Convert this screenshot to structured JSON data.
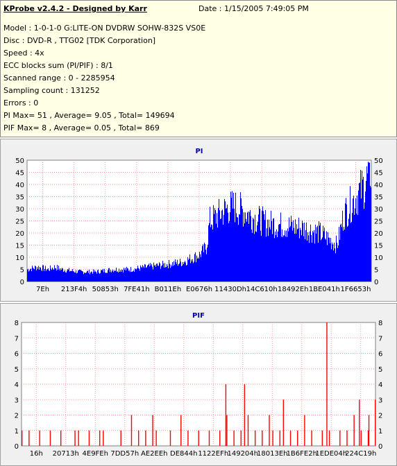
{
  "header": {
    "title": "KProbe v2.4.2 - Designed by Karr",
    "date": "Date : 1/15/2005 7:49:05 PM",
    "lines": [
      "Model : 1-0-1-0 G:LITE-ON DVDRW SOHW-832S  VS0E",
      "Disc : DVD-R , TTG02 [TDK Corporation]",
      "Speed : 4x",
      "ECC blocks sum (PI/PIF) : 8/1",
      "Scanned range : 0 - 2285954",
      "Sampling count : 131252",
      "Errors : 0",
      "PI Max= 51 , Average= 9.05 , Total= 149694",
      "PIF Max= 8 , Average= 0.05 , Total= 869"
    ]
  },
  "colors": {
    "pi": "#0000ff",
    "pif": "#ff0000",
    "grid": "#ff9999",
    "plot_bg": "#ffffff"
  },
  "chart_data": [
    {
      "type": "area",
      "title": "PI",
      "xlabel": "",
      "ylabel": "",
      "ylim": [
        0,
        50
      ],
      "yticks": [
        0,
        5,
        10,
        15,
        20,
        25,
        30,
        35,
        40,
        45,
        50
      ],
      "grid": true,
      "x_tick_labels": [
        "7Eh",
        "213F4h",
        "50853h",
        "7FE41h",
        "B011Eh",
        "E0676h",
        "11430Dh",
        "14C610h",
        "18492Eh",
        "1BE041h",
        "1F6653h"
      ],
      "x": [
        0,
        0.03,
        0.06,
        0.08,
        0.1,
        0.15,
        0.2,
        0.25,
        0.3,
        0.35,
        0.4,
        0.45,
        0.5,
        0.52,
        0.53,
        0.55,
        0.58,
        0.6,
        0.63,
        0.66,
        0.7,
        0.75,
        0.8,
        0.85,
        0.88,
        0.9,
        0.92,
        0.95,
        0.98,
        1.0
      ],
      "values": [
        5,
        6,
        5,
        6,
        5,
        4,
        4,
        5,
        5,
        6,
        7,
        8,
        11,
        14,
        25,
        27,
        30,
        31,
        29,
        26,
        24,
        23,
        22,
        20,
        17,
        15,
        28,
        34,
        40,
        47
      ],
      "peak_max": 51
    },
    {
      "type": "bar",
      "title": "PIF",
      "xlabel": "",
      "ylabel": "",
      "ylim": [
        0,
        8
      ],
      "yticks": [
        0,
        1,
        2,
        3,
        4,
        5,
        6,
        7,
        8
      ],
      "grid": true,
      "x_tick_labels": [
        "16h",
        "20713h",
        "4E9FEh",
        "7DD57h",
        "AE2EEh",
        "DE844h",
        "1122EFh",
        "149204h",
        "18013Eh",
        "1B6FE2h",
        "1EDE04h",
        "224C19h"
      ],
      "spikes": [
        {
          "x": 0.0,
          "v": 1
        },
        {
          "x": 0.02,
          "v": 1
        },
        {
          "x": 0.05,
          "v": 1
        },
        {
          "x": 0.08,
          "v": 1
        },
        {
          "x": 0.11,
          "v": 1
        },
        {
          "x": 0.15,
          "v": 1
        },
        {
          "x": 0.16,
          "v": 1
        },
        {
          "x": 0.19,
          "v": 1
        },
        {
          "x": 0.22,
          "v": 1
        },
        {
          "x": 0.23,
          "v": 1
        },
        {
          "x": 0.28,
          "v": 1
        },
        {
          "x": 0.31,
          "v": 2
        },
        {
          "x": 0.33,
          "v": 1
        },
        {
          "x": 0.35,
          "v": 1
        },
        {
          "x": 0.37,
          "v": 2
        },
        {
          "x": 0.38,
          "v": 1
        },
        {
          "x": 0.42,
          "v": 1
        },
        {
          "x": 0.45,
          "v": 2
        },
        {
          "x": 0.47,
          "v": 1
        },
        {
          "x": 0.5,
          "v": 1
        },
        {
          "x": 0.53,
          "v": 1
        },
        {
          "x": 0.56,
          "v": 1
        },
        {
          "x": 0.58,
          "v": 2
        },
        {
          "x": 0.6,
          "v": 1
        },
        {
          "x": 0.62,
          "v": 1
        },
        {
          "x": 0.64,
          "v": 2
        },
        {
          "x": 0.66,
          "v": 1
        },
        {
          "x": 0.68,
          "v": 1
        },
        {
          "x": 0.7,
          "v": 2
        },
        {
          "x": 0.71,
          "v": 1
        },
        {
          "x": 0.73,
          "v": 1
        },
        {
          "x": 0.76,
          "v": 1
        },
        {
          "x": 0.78,
          "v": 1
        },
        {
          "x": 0.8,
          "v": 2
        },
        {
          "x": 0.82,
          "v": 1
        },
        {
          "x": 0.85,
          "v": 1
        },
        {
          "x": 0.87,
          "v": 1
        },
        {
          "x": 0.9,
          "v": 1
        },
        {
          "x": 0.92,
          "v": 1
        },
        {
          "x": 0.94,
          "v": 2
        },
        {
          "x": 0.96,
          "v": 1
        },
        {
          "x": 0.98,
          "v": 1
        },
        {
          "x": 1.0,
          "v": 3
        },
        {
          "x": 0.577,
          "v": 4
        },
        {
          "x": 0.63,
          "v": 4
        },
        {
          "x": 0.74,
          "v": 3
        },
        {
          "x": 0.863,
          "v": 8
        },
        {
          "x": 0.955,
          "v": 3
        },
        {
          "x": 0.982,
          "v": 2
        }
      ]
    }
  ]
}
